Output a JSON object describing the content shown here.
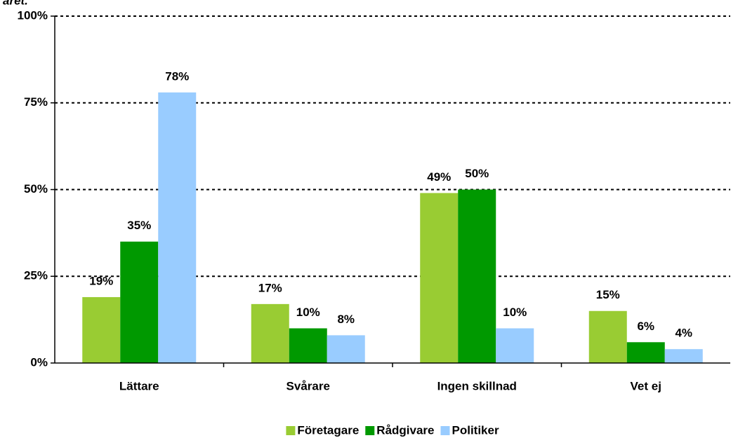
{
  "chart_data": {
    "type": "bar",
    "title": "året.",
    "categories": [
      "Lättare",
      "Svårare",
      "Ingen skillnad",
      "Vet ej"
    ],
    "series": [
      {
        "name": "Företagare",
        "color": "#99cc33",
        "values": [
          19,
          17,
          49,
          15
        ],
        "value_labels": [
          "19%",
          "17%",
          "49%",
          "15%"
        ]
      },
      {
        "name": "Rådgivare",
        "color": "#009900",
        "values": [
          35,
          10,
          50,
          6
        ],
        "value_labels": [
          "35%",
          "10%",
          "50%",
          "6%"
        ]
      },
      {
        "name": "Politiker",
        "color": "#99ccff",
        "values": [
          78,
          8,
          10,
          4
        ],
        "value_labels": [
          "78%",
          "8%",
          "10%",
          "4%"
        ]
      }
    ],
    "ylim": [
      0,
      100
    ],
    "yticks": [
      {
        "value": 0,
        "label": "0%"
      },
      {
        "value": 25,
        "label": "25%"
      },
      {
        "value": 50,
        "label": "50%"
      },
      {
        "value": 75,
        "label": "75%"
      },
      {
        "value": 100,
        "label": "100%"
      }
    ],
    "grid": true,
    "legend": "bottom"
  }
}
